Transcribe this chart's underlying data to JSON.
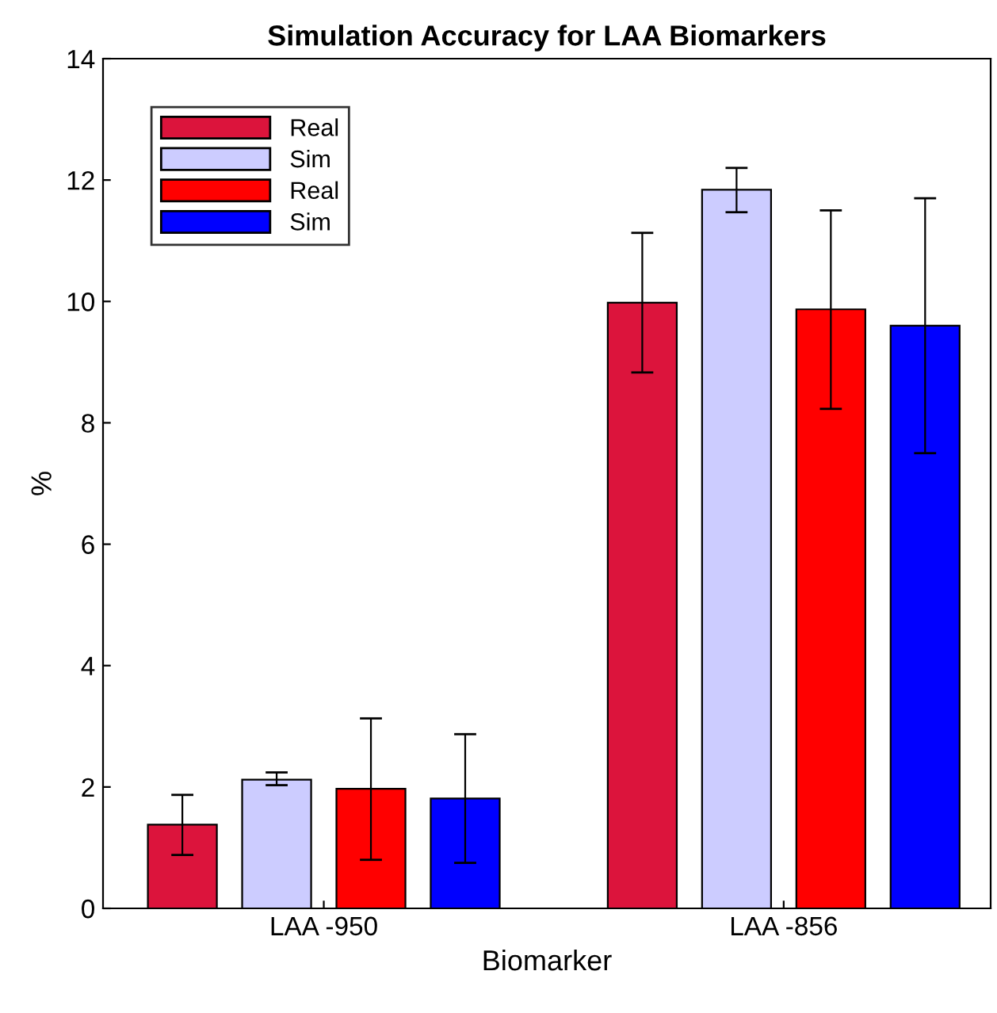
{
  "chart_data": {
    "type": "bar",
    "title": "Simulation Accuracy for LAA Biomarkers",
    "xlabel": "Biomarker",
    "ylabel": "%",
    "categories": [
      "LAA -950",
      "LAA -856"
    ],
    "series": [
      {
        "name": "Real",
        "color": "#dc143c",
        "values": [
          1.38,
          9.98
        ],
        "errors": [
          [
            0.88,
            1.87
          ],
          [
            8.83,
            11.13
          ]
        ]
      },
      {
        "name": "Sim",
        "color": "#ccccff",
        "values": [
          2.12,
          11.84
        ],
        "errors": [
          [
            2.03,
            2.24
          ],
          [
            11.47,
            12.2
          ]
        ]
      },
      {
        "name": "Real",
        "color": "#ff0000",
        "values": [
          1.97,
          9.87
        ],
        "errors": [
          [
            0.8,
            3.13
          ],
          [
            8.23,
            11.5
          ]
        ]
      },
      {
        "name": "Sim",
        "color": "#0000ff",
        "values": [
          1.81,
          9.6
        ],
        "errors": [
          [
            0.75,
            2.87
          ],
          [
            7.5,
            11.7
          ]
        ]
      }
    ],
    "ylim": [
      0,
      14
    ],
    "yticks": [
      0,
      2,
      4,
      6,
      8,
      10,
      12,
      14
    ],
    "grid": false,
    "legend": "top left"
  }
}
